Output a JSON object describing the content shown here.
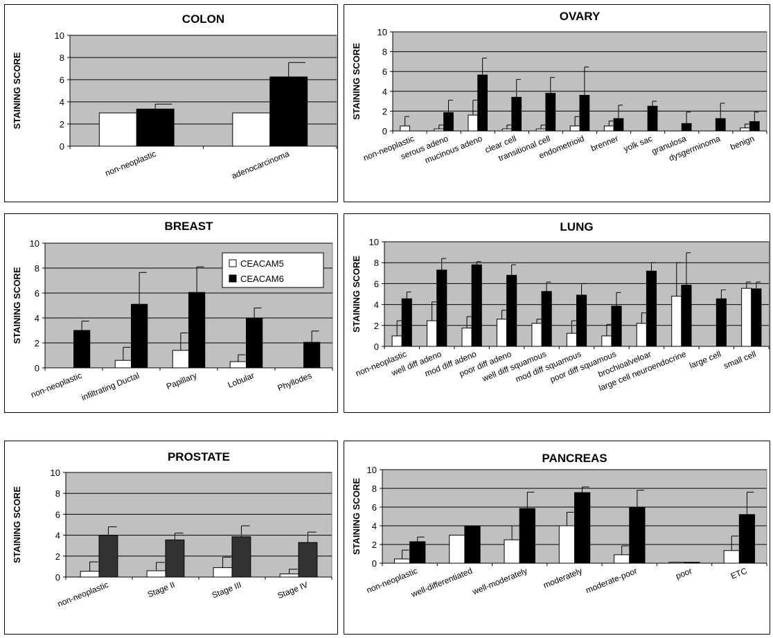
{
  "colors": {
    "plot_bg": "#C0C0C0",
    "ceacam5": "#FFFFFF",
    "ceacam6": "#000000",
    "prostate_ceacam6": "#333333"
  },
  "chart_data": [
    {
      "id": "colon",
      "type": "bar",
      "title": "COLON",
      "ylabel": "STAINING SCORE",
      "ylim": [
        0,
        10
      ],
      "yticks": [
        0,
        2,
        4,
        6,
        8,
        10
      ],
      "grid": true,
      "categories": [
        "non-neoplastic",
        "adenocarcinoma"
      ],
      "series": [
        {
          "name": "CEACAM5",
          "values": [
            3.0,
            3.0
          ],
          "err": [
            0,
            0
          ]
        },
        {
          "name": "CEACAM6",
          "values": [
            3.35,
            6.25
          ],
          "err": [
            0.45,
            1.3
          ]
        }
      ]
    },
    {
      "id": "ovary",
      "type": "bar",
      "title": "OVARY",
      "ylabel": "STAINING SCORE",
      "ylim": [
        0,
        10
      ],
      "yticks": [
        0,
        2,
        4,
        6,
        8,
        10
      ],
      "grid": true,
      "categories": [
        "non-neoplastic",
        "serous adeno",
        "mucinous adeno",
        "clear cell",
        "transitional cell",
        "endometrioid",
        "brenner",
        "yolk sac",
        "granulosa",
        "dysgerminoma",
        "benign"
      ],
      "series": [
        {
          "name": "CEACAM5",
          "values": [
            0.5,
            0.2,
            1.6,
            0.2,
            0.2,
            0.5,
            0.5,
            0,
            0,
            0,
            0.3
          ],
          "err": [
            0.95,
            0.4,
            1.5,
            0.4,
            0.4,
            0.95,
            0.5,
            0,
            0,
            0,
            0.4
          ]
        },
        {
          "name": "CEACAM6",
          "values": [
            0,
            1.85,
            5.65,
            3.4,
            3.8,
            3.6,
            1.25,
            2.5,
            0.75,
            1.25,
            0.95
          ],
          "err": [
            0,
            1.25,
            1.7,
            1.8,
            1.6,
            2.85,
            1.35,
            0.5,
            1.15,
            1.55,
            0.95
          ]
        }
      ]
    },
    {
      "id": "breast",
      "type": "bar",
      "title": "BREAST",
      "ylabel": "STAINING SCORE",
      "ylim": [
        0,
        10
      ],
      "yticks": [
        0,
        2,
        4,
        6,
        8,
        10
      ],
      "grid": true,
      "legend": {
        "position": "top-right",
        "items": [
          "CEACAM5",
          "CEACAM6"
        ]
      },
      "categories": [
        "non-neoplastic",
        "infiltrating Ductal",
        "Papillary",
        "Lobular",
        "Phyllodes"
      ],
      "series": [
        {
          "name": "CEACAM5",
          "values": [
            0,
            0.6,
            1.4,
            0.5,
            0
          ],
          "err": [
            0,
            1.05,
            1.4,
            0.55,
            0
          ]
        },
        {
          "name": "CEACAM6",
          "values": [
            3.0,
            5.1,
            6.05,
            4.0,
            2.05
          ],
          "err": [
            0.75,
            2.55,
            2.05,
            0.8,
            0.9
          ]
        }
      ]
    },
    {
      "id": "lung",
      "type": "bar",
      "title": "LUNG",
      "ylabel": "STAINING SCORE",
      "ylim": [
        0,
        10
      ],
      "yticks": [
        0,
        2,
        4,
        6,
        8,
        10
      ],
      "grid": true,
      "categories": [
        "non-neoplastic",
        "well diff adeno",
        "mod diff adeno",
        "poor diff adeno",
        "well diff squamous",
        "mod diff squamous",
        "poor diff squamous",
        "brochioalveloar",
        "large cell neuroendocrine",
        "large cell",
        "small cell"
      ],
      "series": [
        {
          "name": "CEACAM5",
          "values": [
            1.0,
            2.45,
            1.75,
            2.6,
            2.2,
            1.25,
            1.0,
            2.2,
            4.8,
            0,
            5.55
          ],
          "err": [
            1.45,
            1.8,
            1.1,
            0.85,
            0.4,
            1.2,
            1.1,
            1.0,
            3.2,
            0,
            0.6
          ]
        },
        {
          "name": "CEACAM6",
          "values": [
            4.55,
            7.3,
            7.8,
            6.8,
            5.25,
            4.9,
            3.85,
            7.2,
            5.85,
            4.55,
            5.5
          ],
          "err": [
            0.65,
            1.1,
            0.3,
            1.0,
            0.9,
            1.1,
            1.3,
            0.8,
            3.1,
            0.85,
            0.65
          ]
        }
      ]
    },
    {
      "id": "prostate",
      "type": "bar",
      "title": "PROSTATE",
      "ylabel": "STAINING SCORE",
      "ylim": [
        0,
        10
      ],
      "yticks": [
        0,
        2,
        4,
        6,
        8,
        10
      ],
      "grid": true,
      "categories": [
        "non-neoplastic",
        "Stage II",
        "Stage III",
        "Stage IV"
      ],
      "series": [
        {
          "name": "CEACAM5",
          "values": [
            0.55,
            0.6,
            0.9,
            0.3
          ],
          "err": [
            0.9,
            0.8,
            1.0,
            0.45
          ]
        },
        {
          "name": "CEACAM6",
          "values": [
            4.0,
            3.55,
            3.85,
            3.3
          ],
          "err": [
            0.8,
            0.65,
            1.05,
            1.0
          ]
        }
      ]
    },
    {
      "id": "pancreas",
      "type": "bar",
      "title": "PANCREAS",
      "ylabel": "STAINING SCORE",
      "ylim": [
        0,
        10
      ],
      "yticks": [
        0,
        2,
        4,
        6,
        8,
        10
      ],
      "grid": true,
      "categories": [
        "non-neoplastic",
        "well-differentiated",
        "well-moderately",
        "moderately",
        "moderate-poor",
        "poor",
        "ETC"
      ],
      "series": [
        {
          "name": "CEACAM5",
          "values": [
            0.45,
            3.0,
            2.5,
            4.0,
            0.9,
            0.1,
            1.35
          ],
          "err": [
            0.95,
            0,
            1.5,
            1.45,
            0.95,
            0,
            1.55
          ]
        },
        {
          "name": "CEACAM6",
          "values": [
            2.3,
            4.0,
            5.85,
            7.55,
            6.0,
            0.1,
            5.2
          ],
          "err": [
            0.5,
            0,
            1.75,
            0.6,
            1.8,
            0,
            2.4
          ]
        }
      ]
    }
  ]
}
